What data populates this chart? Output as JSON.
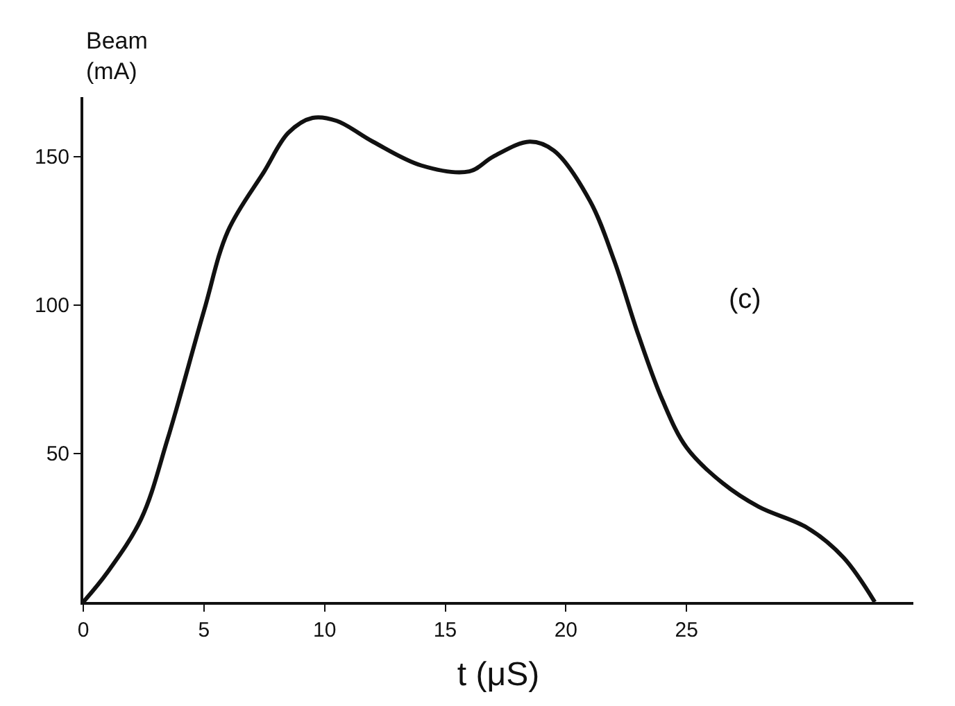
{
  "chart_data": {
    "type": "line",
    "xlabel": "t (μS)",
    "ylabel": "Beam (mA)",
    "x": [
      0,
      1,
      2.4,
      3.5,
      5,
      6,
      7.5,
      8.5,
      9.5,
      10.5,
      12,
      14,
      16,
      17,
      18.5,
      19.5,
      21,
      22,
      23,
      24,
      25,
      26.5,
      28,
      30,
      31.5,
      32.8
    ],
    "series": [
      {
        "color": "#111111",
        "values": [
          0,
          10,
          28,
          55,
          98,
          125,
          145,
          158,
          163,
          162,
          155,
          147,
          145,
          150,
          155,
          152,
          135,
          115,
          90,
          68,
          52,
          40,
          32,
          25,
          15,
          0
        ]
      }
    ],
    "xlim": [
      0,
      34.4
    ],
    "ylim": [
      0,
      170
    ],
    "xticks": [
      0,
      5,
      10,
      15,
      20,
      25
    ],
    "yticks": [
      50,
      100,
      150
    ],
    "annotations": [
      "(c)"
    ],
    "grid": false,
    "legend": false,
    "marker": "none",
    "line_style": "solid"
  }
}
